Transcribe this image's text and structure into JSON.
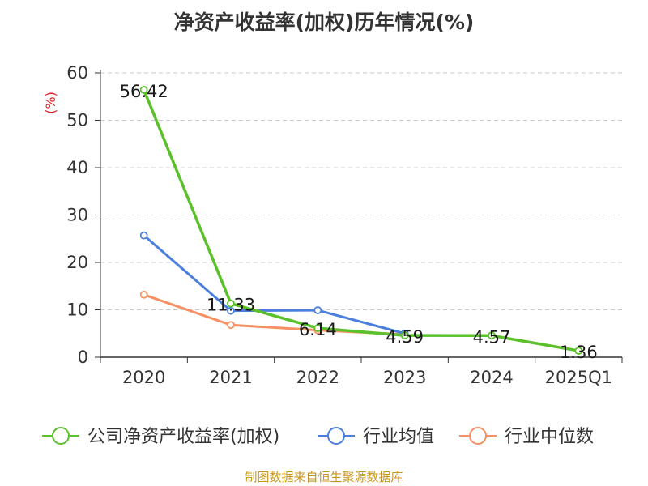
{
  "chart_data": {
    "type": "line",
    "title": "净资产收益率(加权)历年情况(%)",
    "ylabel": "(%)",
    "ylim": [
      0,
      60
    ],
    "yticks": [
      0,
      10,
      20,
      30,
      40,
      50,
      60
    ],
    "categories": [
      "2020",
      "2021",
      "2022",
      "2023",
      "2024",
      "2025Q1"
    ],
    "series": [
      {
        "name": "公司净资产收益率(加权)",
        "color": "#5ac12a",
        "values": [
          56.42,
          11.33,
          6.14,
          4.59,
          4.57,
          1.36
        ],
        "labels": [
          "56.42",
          "11.33",
          "6.14",
          "4.59",
          "4.57",
          "1.36"
        ]
      },
      {
        "name": "行业均值",
        "color": "#4a7fdc",
        "values": [
          25.7,
          9.8,
          9.9,
          5.0,
          null,
          null
        ]
      },
      {
        "name": "行业中位数",
        "color": "#f79063",
        "values": [
          13.2,
          6.8,
          5.7,
          4.8,
          null,
          null
        ]
      }
    ]
  },
  "source": {
    "text": "制图数据来自恒生聚源数据库",
    "color": "#c8961e"
  }
}
